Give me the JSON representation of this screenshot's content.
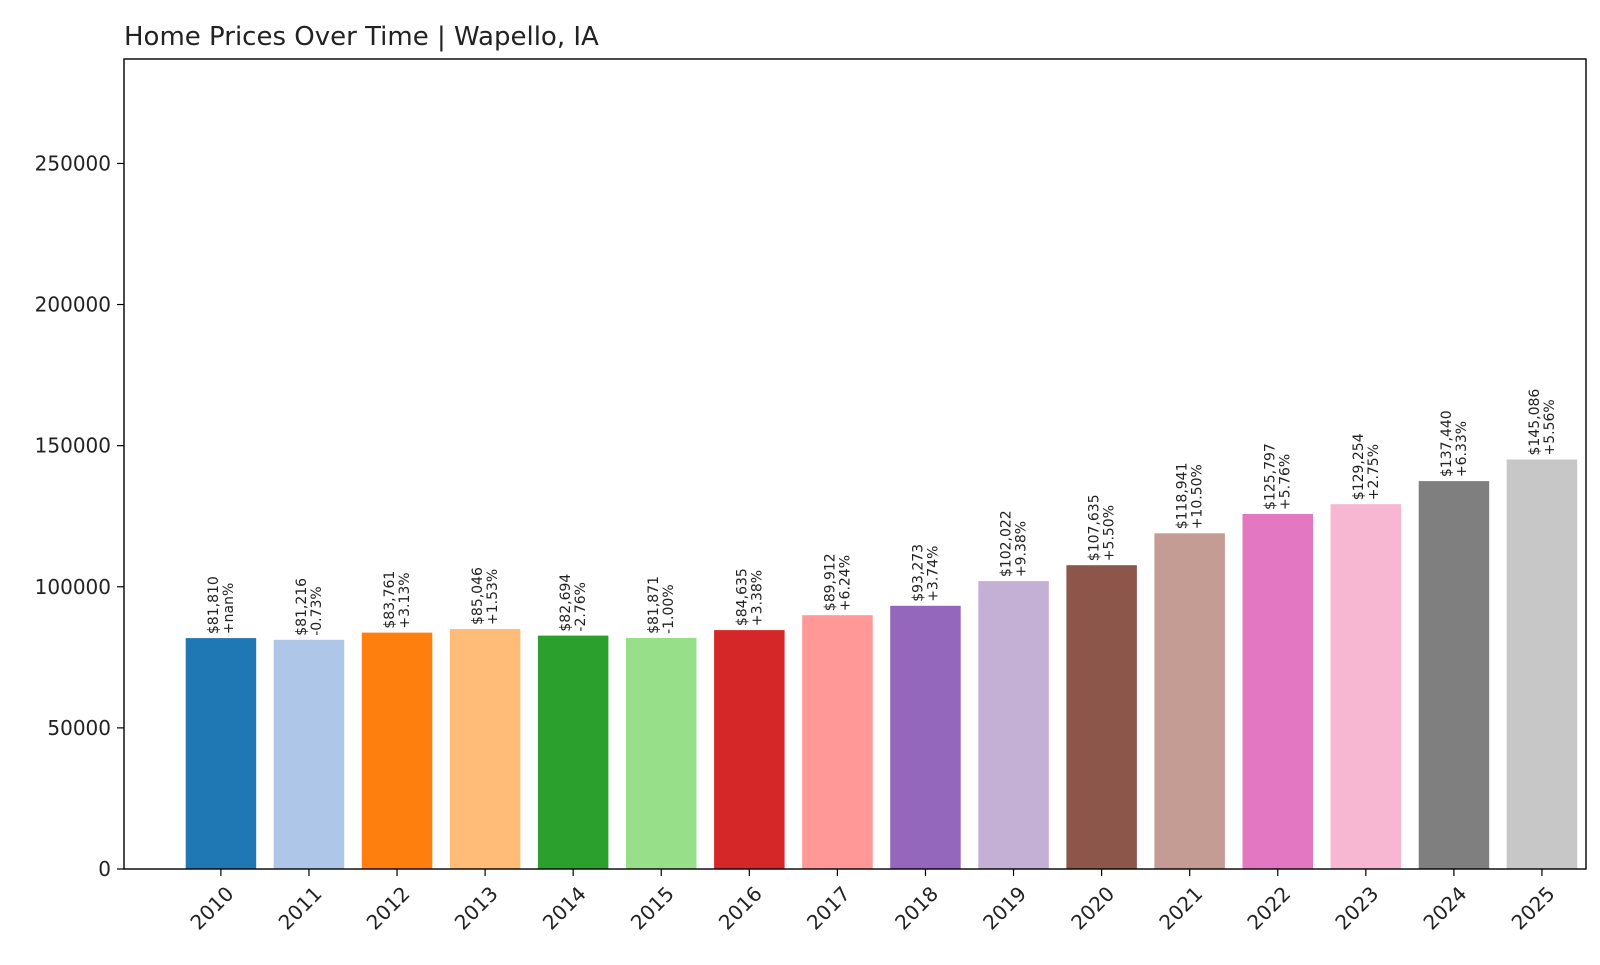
{
  "chart_data": {
    "type": "bar",
    "title": "Home Prices Over Time | Wapello, IA",
    "xlabel": "",
    "ylabel": "",
    "categories": [
      "2010",
      "2011",
      "2012",
      "2013",
      "2014",
      "2015",
      "2016",
      "2017",
      "2018",
      "2019",
      "2020",
      "2021",
      "2022",
      "2023",
      "2024",
      "2025"
    ],
    "values": [
      81810,
      81216,
      83761,
      85046,
      82694,
      81871,
      84635,
      89912,
      93273,
      102022,
      107635,
      118941,
      125797,
      129254,
      137440,
      145086
    ],
    "price_labels": [
      "$81,810",
      "$81,216",
      "$83,761",
      "$85,046",
      "$82,694",
      "$81,871",
      "$84,635",
      "$89,912",
      "$93,273",
      "$102,022",
      "$107,635",
      "$118,941",
      "$125,797",
      "$129,254",
      "$137,440",
      "$145,086"
    ],
    "change_labels": [
      "+nan%",
      "-0.73%",
      "+3.13%",
      "+1.53%",
      "-2.76%",
      "-1.00%",
      "+3.38%",
      "+6.24%",
      "+3.74%",
      "+9.38%",
      "+5.50%",
      "+10.50%",
      "+5.76%",
      "+2.75%",
      "+6.33%",
      "+5.56%"
    ],
    "colors": [
      "#1f77b4",
      "#aec7e8",
      "#ff7f0e",
      "#ffbb78",
      "#2ca02c",
      "#98df8a",
      "#d62728",
      "#ff9896",
      "#9467bd",
      "#c5b0d5",
      "#8c564b",
      "#c49c94",
      "#e377c2",
      "#f7b6d2",
      "#7f7f7f",
      "#c7c7c7"
    ],
    "ylim": [
      0,
      287000
    ],
    "yticks": [
      0,
      50000,
      100000,
      150000,
      200000,
      250000
    ],
    "ytick_labels": [
      "0",
      "50000",
      "100000",
      "150000",
      "200000",
      "250000"
    ],
    "grid": false,
    "legend": "none"
  }
}
